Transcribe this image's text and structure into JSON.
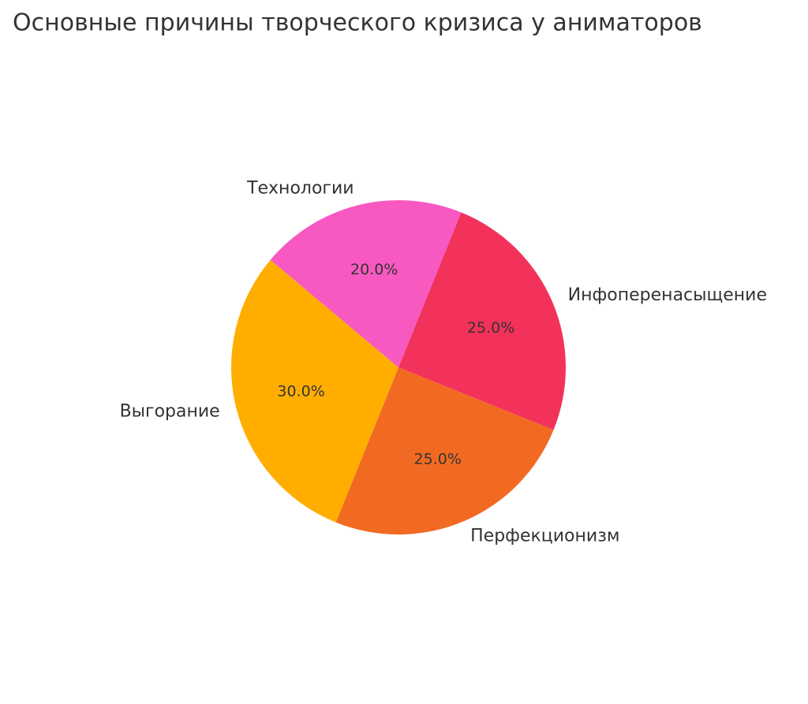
{
  "chart_data": {
    "type": "pie",
    "title": "Основные причины творческого кризиса у аниматоров",
    "categories": [
      "Инфоперенасыщение",
      "Перфекционизм",
      "Выгорание",
      "Технологии"
    ],
    "values": [
      25,
      25,
      30,
      20
    ],
    "value_labels": [
      "25.0%",
      "25.0%",
      "30.0%",
      "20.0%"
    ],
    "colors": [
      "#f2325a",
      "#f26a22",
      "#ffae00",
      "#f759c1"
    ]
  }
}
